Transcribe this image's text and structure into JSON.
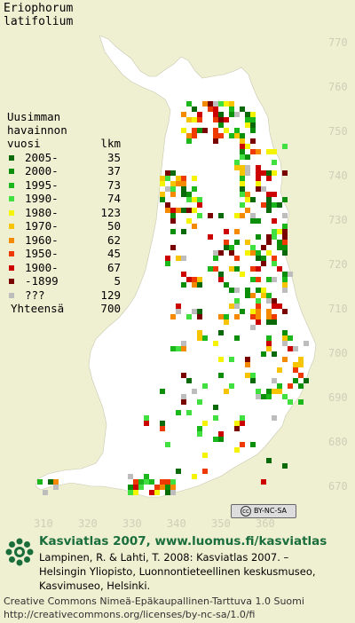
{
  "title": {
    "line1": "Eriophorum",
    "line2": "latifolium"
  },
  "grid": {
    "y_labels": [
      "770",
      "760",
      "750",
      "740",
      "730",
      "720",
      "710",
      "700",
      "690",
      "680",
      "670"
    ],
    "x_labels": [
      "310",
      "320",
      "330",
      "340",
      "350",
      "360"
    ]
  },
  "legend": {
    "header": [
      "Uusimman",
      "havainnon",
      "vuosi"
    ],
    "count_header": "lkm",
    "items": [
      {
        "label": "2005-",
        "count": "35",
        "color": "#0a6a0a"
      },
      {
        "label": "2000-",
        "count": "37",
        "color": "#0b8f0b"
      },
      {
        "label": "1995-",
        "count": "73",
        "color": "#1ab81a"
      },
      {
        "label": "1990-",
        "count": "74",
        "color": "#3fe03f"
      },
      {
        "label": "1980-",
        "count": "123",
        "color": "#f4f400"
      },
      {
        "label": "1970-",
        "count": "50",
        "color": "#f6c400"
      },
      {
        "label": "1960-",
        "count": "62",
        "color": "#f58a00"
      },
      {
        "label": "1950-",
        "count": "45",
        "color": "#ee3a00"
      },
      {
        "label": "1900-",
        "count": "67",
        "color": "#cc0000"
      },
      {
        "label": "-1899",
        "count": "5",
        "color": "#7a0000"
      },
      {
        "label": "???",
        "count": "129",
        "color": "#bdbdbd"
      }
    ],
    "total_label": "Yhteensä",
    "total_count": "700"
  },
  "license_badge": {
    "text": "BY-NC-SA",
    "mark": "cc"
  },
  "footer": {
    "title": "Kasviatlas 2007, www.luomus.fi/kasviatlas",
    "lines": [
      "Lampinen, R. & Lahti, T. 2008: Kasviatlas 2007. –",
      "Helsingin Yliopisto, Luonnontieteellinen keskusmuseo,",
      "Kasvimuseo, Helsinki."
    ],
    "license": [
      "Creative Commons Nimeä-Epäkaupallinen-Tarttuva 1.0 Suomi",
      "http://creativecommons.org/licenses/by-nc-sa/1.0/fi"
    ]
  },
  "colors": {
    "background": "#efefd2",
    "land": "#ffffff",
    "grid_label": "#cfcfb8",
    "footer_title": "#1a6e3c"
  }
}
